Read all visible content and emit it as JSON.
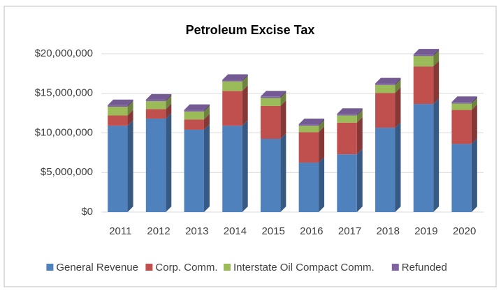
{
  "chart_data": {
    "type": "bar3d_stacked",
    "title": "Petroleum Excise Tax",
    "categories": [
      "2011",
      "2012",
      "2013",
      "2014",
      "2015",
      "2016",
      "2017",
      "2018",
      "2019",
      "2020"
    ],
    "series": [
      {
        "name": "General Revenue",
        "color": "#4f81bd",
        "values": [
          10900000,
          11800000,
          10400000,
          10900000,
          9250000,
          6250000,
          7300000,
          10650000,
          13650000,
          8600000
        ]
      },
      {
        "name": "Corp. Comm.",
        "color": "#c0504d",
        "values": [
          1300000,
          1200000,
          1300000,
          4400000,
          4150000,
          3850000,
          4000000,
          4400000,
          4750000,
          4300000
        ]
      },
      {
        "name": "Interstate Oil Compact Comm.",
        "color": "#9bbb59",
        "values": [
          1100000,
          1000000,
          1000000,
          1200000,
          1000000,
          800000,
          900000,
          1000000,
          1300000,
          800000
        ]
      },
      {
        "name": "Refunded",
        "color": "#8064a2",
        "values": [
          200000,
          200000,
          200000,
          200000,
          200000,
          200000,
          200000,
          200000,
          200000,
          200000
        ]
      }
    ],
    "ylim": [
      0,
      20000000
    ],
    "yticks": [
      {
        "value": 0,
        "label": "$0"
      },
      {
        "value": 5000000,
        "label": "$5,000,000"
      },
      {
        "value": 10000000,
        "label": "$10,000,000"
      },
      {
        "value": 15000000,
        "label": "$15,000,000"
      },
      {
        "value": 20000000,
        "label": "$20,000,000"
      }
    ],
    "grid": true,
    "legend": "bottom"
  }
}
